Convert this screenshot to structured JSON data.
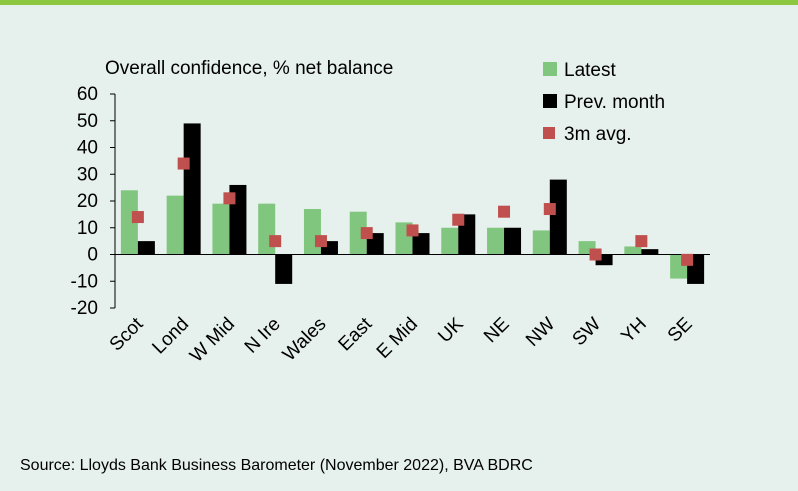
{
  "colors": {
    "background": "#e6f0ec",
    "top_rule": "#8dc63f",
    "latest": "#80c67e",
    "prev_month": "#000000",
    "avg3m": "#c0504d"
  },
  "source": "Source: Lloyds Bank Business Barometer (November 2022), BVA BDRC",
  "chart_data": {
    "type": "bar",
    "title": "Overall confidence, % net balance",
    "xlabel": "",
    "ylabel": "",
    "ylim": [
      -20,
      60
    ],
    "yticks": [
      60,
      50,
      40,
      30,
      20,
      10,
      0,
      -10,
      -20
    ],
    "grid": false,
    "legend_position": "top-right",
    "categories": [
      "Scot",
      "Lond",
      "W Mid",
      "N Ire",
      "Wales",
      "East",
      "E Mid",
      "UK",
      "NE",
      "NW",
      "SW",
      "YH",
      "SE"
    ],
    "series": [
      {
        "name": "Latest",
        "kind": "bar",
        "values": [
          24,
          22,
          19,
          19,
          17,
          16,
          12,
          10,
          10,
          9,
          5,
          3,
          -9
        ]
      },
      {
        "name": "Prev. month",
        "kind": "bar",
        "values": [
          5,
          49,
          26,
          -11,
          5,
          8,
          8,
          15,
          10,
          28,
          -4,
          2,
          -11
        ]
      },
      {
        "name": "3m avg.",
        "kind": "marker",
        "values": [
          14,
          34,
          21,
          5,
          5,
          8,
          9,
          13,
          16,
          17,
          0,
          5,
          -2
        ]
      }
    ]
  }
}
